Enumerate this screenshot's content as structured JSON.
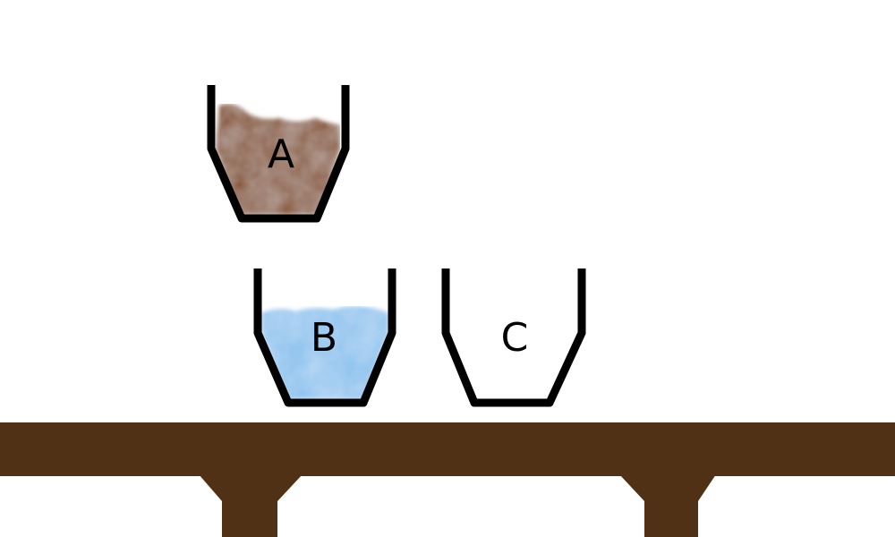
{
  "cups": [
    {
      "label": "A",
      "content": "dirt",
      "fill_color": "#8a5a3a"
    },
    {
      "label": "B",
      "content": "water",
      "fill_color": "#8fc4ef"
    },
    {
      "label": "C",
      "content": "empty",
      "fill_color": ""
    }
  ],
  "table": {
    "color": "#513115"
  },
  "outline_color": "#000000"
}
